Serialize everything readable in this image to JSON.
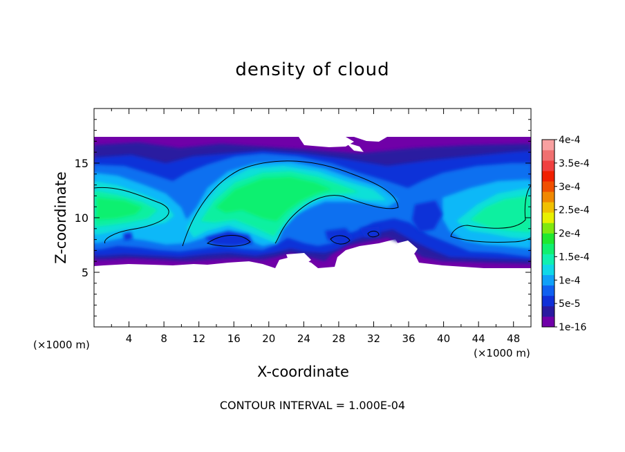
{
  "chart_data": {
    "type": "heatmap",
    "title": "density of cloud",
    "xlabel": "X-coordinate",
    "ylabel": "Z-coordinate",
    "x_unit": "(×1000 m)",
    "xlim": [
      0,
      50
    ],
    "ylim": [
      0,
      20
    ],
    "x_ticks": [
      4,
      8,
      12,
      16,
      20,
      24,
      28,
      32,
      36,
      40,
      44,
      48
    ],
    "y_ticks": [
      5,
      10,
      15
    ],
    "colorbar": {
      "levels": [
        "1e-16",
        "5e-5",
        "1e-4",
        "1.5e-4",
        "2e-4",
        "2.5e-4",
        "3e-4",
        "3.5e-4",
        "4e-4"
      ],
      "colors": [
        "#7000a8",
        "#2a1aa0",
        "#1030d8",
        "#1060f0",
        "#10a0f8",
        "#10d8e8",
        "#10f0b0",
        "#10f070",
        "#20e830",
        "#80e810",
        "#e8f000",
        "#f0c000",
        "#f08800",
        "#f05000",
        "#f02000",
        "#f04040",
        "#f07070",
        "#f8a0a0"
      ]
    },
    "contour_interval": "CONTOUR INTERVAL = 1.000E-04",
    "field_description": [
      {
        "region": "cloud layer",
        "x": [
          0,
          50
        ],
        "z": [
          5.5,
          17.5
        ],
        "density": "1e-16"
      },
      {
        "region": "main plume core",
        "x": [
          12,
          30
        ],
        "z": [
          7.5,
          15
        ],
        "density": "1.5e-4 to 2e-4"
      },
      {
        "region": "left core",
        "x": [
          0,
          9
        ],
        "z": [
          9,
          12.5
        ],
        "density": "1.5e-4 to 2e-4"
      },
      {
        "region": "right core",
        "x": [
          42,
          50
        ],
        "z": [
          8,
          13
        ],
        "density": "1e-4 to 1.5e-4"
      }
    ]
  }
}
